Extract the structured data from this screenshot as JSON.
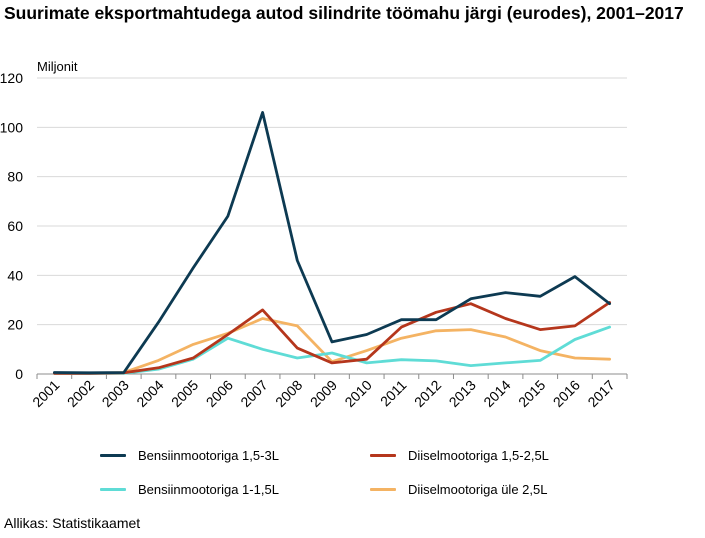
{
  "title": "Suurimate eksportmahtudega autod silindrite töömahu järgi (eurodes), 2001–2017",
  "source": "Allikas: Statistikaamet",
  "chart_data": {
    "type": "line",
    "title": "Suurimate eksportmahtudega autod silindrite töömahu järgi (eurodes), 2001–2017",
    "ylabel": "Miljonit",
    "xlabel": "",
    "ylim": [
      0,
      120
    ],
    "yticks": [
      0,
      20,
      40,
      60,
      80,
      100,
      120
    ],
    "grid": true,
    "legend_position": "bottom",
    "categories": [
      "2001",
      "2002",
      "2003",
      "2004",
      "2005",
      "2006",
      "2007",
      "2008",
      "2009",
      "2010",
      "2011",
      "2012",
      "2013",
      "2014",
      "2015",
      "2016",
      "2017"
    ],
    "series": [
      {
        "name": "Bensiinmootoriga 1,5-3L",
        "color": "#0d3a52",
        "values": [
          0.6,
          0.5,
          0.6,
          21,
          43,
          64,
          106,
          46,
          13,
          16,
          22,
          22,
          30.5,
          33,
          31.5,
          39.5,
          28.5
        ]
      },
      {
        "name": "Diiselmootoriga 1,5-2,5L",
        "color": "#b5361c",
        "values": [
          0.3,
          0.3,
          0.5,
          2.5,
          6.5,
          16,
          26,
          10.5,
          4.5,
          6,
          19,
          25,
          28.5,
          22.5,
          18,
          19.5,
          29
        ]
      },
      {
        "name": "Bensiinmootoriga 1-1,5L",
        "color": "#5fdcd6",
        "values": [
          0.2,
          0.2,
          0.3,
          2,
          6,
          14.5,
          10,
          6.5,
          8.5,
          4.5,
          5.8,
          5.3,
          3.4,
          4.5,
          5.5,
          14,
          19
        ]
      },
      {
        "name": "Diiselmootoriga üle 2,5L",
        "color": "#f4b363",
        "values": [
          0.3,
          0.3,
          0.6,
          5.5,
          12,
          16.5,
          22.5,
          19.5,
          5,
          9.5,
          14.5,
          17.5,
          18,
          15,
          9.5,
          6.5,
          6
        ]
      }
    ]
  }
}
